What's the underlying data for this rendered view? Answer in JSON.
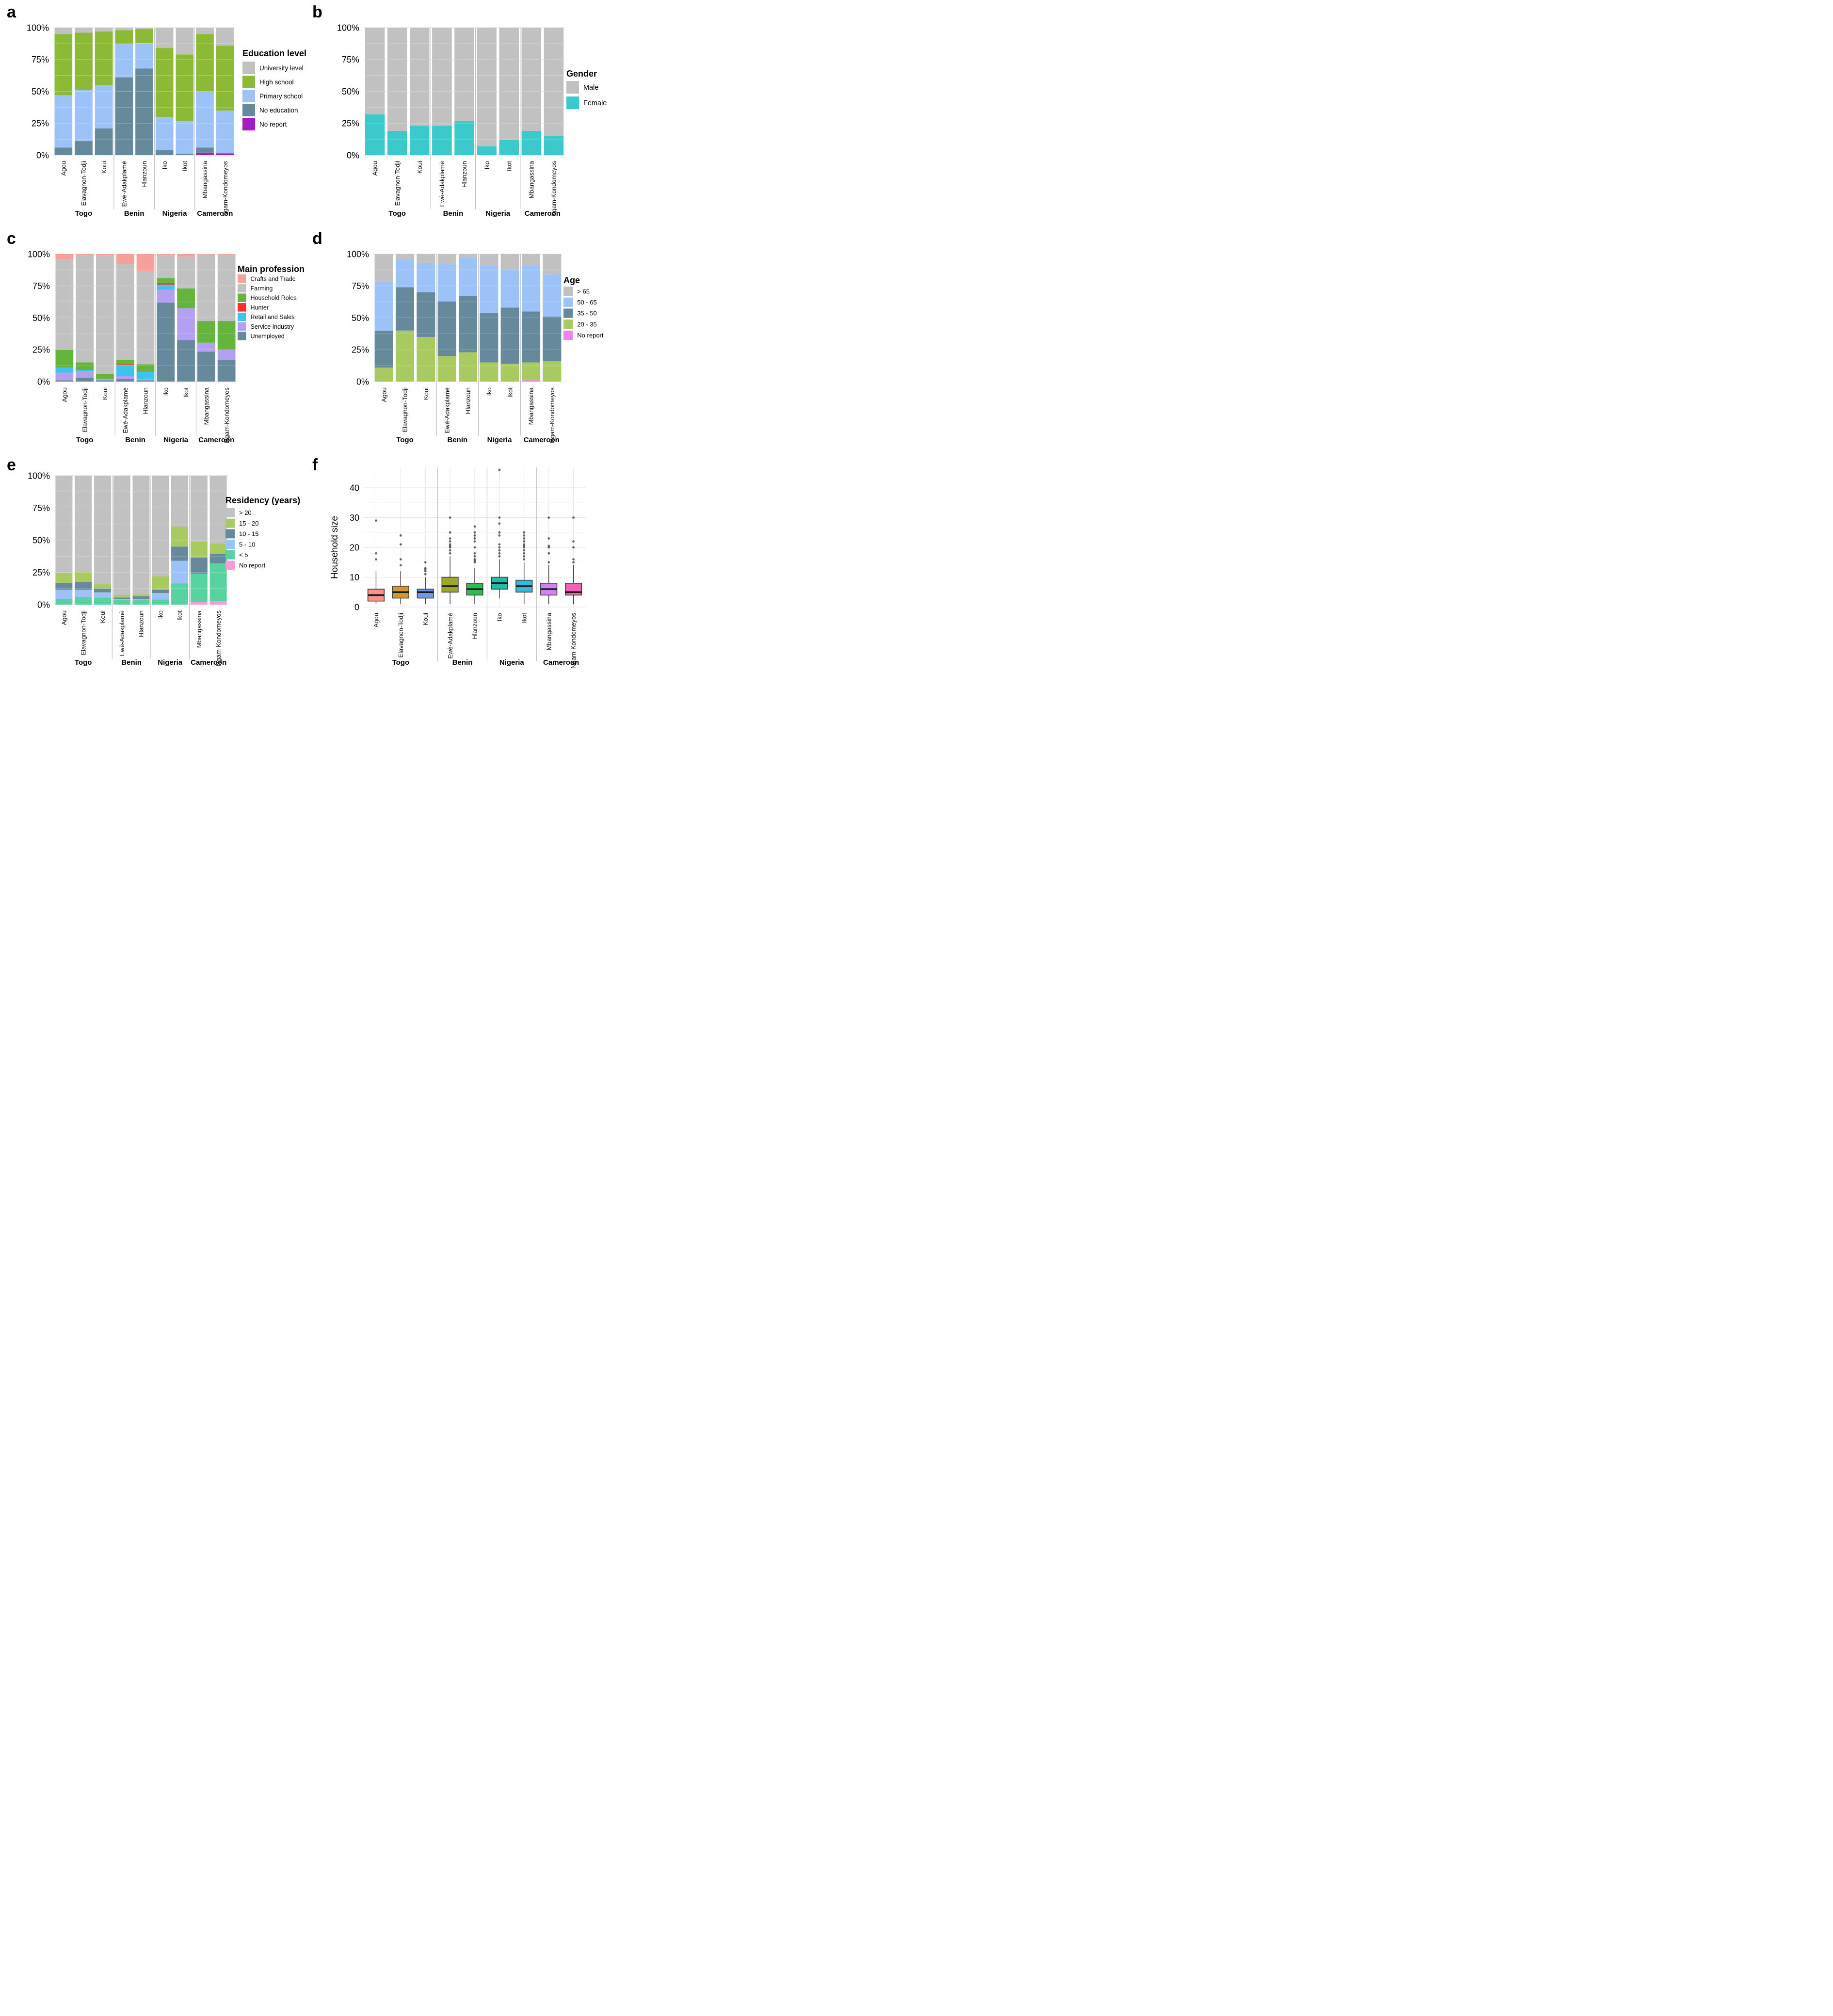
{
  "villages": [
    {
      "name": "Agou",
      "country": "Togo"
    },
    {
      "name": "Elavagnon-Todji",
      "country": "Togo"
    },
    {
      "name": "Koui",
      "country": "Togo"
    },
    {
      "name": "Ewè-Adakplamè",
      "country": "Benin"
    },
    {
      "name": "Hlanzoun",
      "country": "Benin"
    },
    {
      "name": "Iko",
      "country": "Nigeria"
    },
    {
      "name": "Ikot",
      "country": "Nigeria"
    },
    {
      "name": "Mbangassina",
      "country": "Cameroon"
    },
    {
      "name": "Ngam-Kondomeyos",
      "country": "Cameroon"
    }
  ],
  "countries": [
    {
      "name": "Togo",
      "count": 3
    },
    {
      "name": "Benin",
      "count": 2
    },
    {
      "name": "Nigeria",
      "count": 2
    },
    {
      "name": "Cameroon",
      "count": 2
    }
  ],
  "percent_ticks": [
    {
      "value": 100,
      "label": "100%"
    },
    {
      "value": 75,
      "label": "75%"
    },
    {
      "value": 50,
      "label": "50%"
    },
    {
      "value": 25,
      "label": "25%"
    },
    {
      "value": 0,
      "label": "0%"
    }
  ],
  "chart_data": [
    {
      "panel": "a",
      "type": "bar",
      "stacked": true,
      "units": "percent",
      "legend_title": "Education level",
      "categories": [
        "Agou",
        "Elavagnon-Todji",
        "Koui",
        "Ewè-Adakplamè",
        "Hlanzoun",
        "Iko",
        "Ikot",
        "Mbangassina",
        "Ngam-Kondomeyos"
      ],
      "series": [
        {
          "name": "University level",
          "color": "#C1C1C1",
          "values": [
            5,
            4,
            3,
            2,
            1,
            16,
            21,
            5,
            14
          ]
        },
        {
          "name": "High school",
          "color": "#8CBA37",
          "values": [
            48,
            45,
            42,
            11,
            11,
            54,
            52,
            45,
            51
          ]
        },
        {
          "name": "Primary school",
          "color": "#9DC2F8",
          "values": [
            41,
            40,
            34,
            26,
            20,
            26,
            26,
            44,
            33
          ]
        },
        {
          "name": "No education",
          "color": "#67899C",
          "values": [
            6,
            11,
            21,
            61,
            68,
            4,
            1,
            4,
            1
          ]
        },
        {
          "name": "No report",
          "color": "#A41CC6",
          "values": [
            0,
            0,
            0,
            0,
            0,
            0,
            0,
            2,
            1
          ]
        }
      ]
    },
    {
      "panel": "b",
      "type": "bar",
      "stacked": true,
      "units": "percent",
      "legend_title": "Gender",
      "categories": [
        "Agou",
        "Elavagnon-Todji",
        "Koui",
        "Ewè-Adakplamè",
        "Hlanzoun",
        "Iko",
        "Ikot",
        "Mbangassina",
        "Ngam-Kondomeyos"
      ],
      "series": [
        {
          "name": "Male",
          "color": "#C1C1C1",
          "values": [
            68,
            81,
            77,
            77,
            73,
            93,
            88,
            81,
            85
          ]
        },
        {
          "name": "Female",
          "color": "#3BC9CC",
          "values": [
            32,
            19,
            23,
            23,
            27,
            7,
            12,
            19,
            15
          ]
        }
      ]
    },
    {
      "panel": "c",
      "type": "bar",
      "stacked": true,
      "units": "percent",
      "legend_title": "Main profession",
      "categories": [
        "Agou",
        "Elavagnon-Todji",
        "Koui",
        "Ewè-Adakplamè",
        "Hlanzoun",
        "Iko",
        "Ikot",
        "Mbangassina",
        "Ngam-Kondomeyos"
      ],
      "series": [
        {
          "name": "Crafts and Trade",
          "color": "#F4A19B",
          "values": [
            4,
            1,
            1,
            8,
            13.5,
            1,
            2,
            0.5,
            0.5
          ]
        },
        {
          "name": "Farming",
          "color": "#C1C1C1",
          "values": [
            71,
            84,
            93,
            75,
            73,
            18,
            25,
            52,
            52
          ]
        },
        {
          "name": "Household Roles",
          "color": "#65B43C",
          "values": [
            14,
            6,
            4,
            3.5,
            5,
            4,
            15.5,
            17,
            22.5
          ]
        },
        {
          "name": "Hunter",
          "color": "#FB2E34",
          "values": [
            0,
            0,
            0,
            0.5,
            0.5,
            1,
            0,
            0,
            0
          ]
        },
        {
          "name": "Retail and Sales",
          "color": "#3DC4EC",
          "values": [
            4,
            1,
            0,
            8.5,
            6,
            4,
            0,
            0,
            0
          ]
        },
        {
          "name": "Service Industry",
          "color": "#B4A0F2",
          "values": [
            6,
            5,
            1,
            2.5,
            1,
            10,
            25,
            7,
            8
          ]
        },
        {
          "name": "Unemployed",
          "color": "#67899C",
          "values": [
            1,
            3,
            1,
            2,
            1,
            62,
            32.5,
            23.5,
            17
          ]
        }
      ]
    },
    {
      "panel": "d",
      "type": "bar",
      "stacked": true,
      "units": "percent",
      "legend_title": "Age",
      "categories": [
        "Agou",
        "Elavagnon-Todji",
        "Koui",
        "Ewè-Adakplamè",
        "Hlanzoun",
        "Iko",
        "Ikot",
        "Mbangassina",
        "Ngam-Kondomeyos"
      ],
      "series": [
        {
          "name": "> 65",
          "color": "#C1C1C1",
          "values": [
            22,
            4,
            7,
            8,
            3,
            9,
            12,
            9,
            16
          ]
        },
        {
          "name": "50 - 65",
          "color": "#9DC2F8",
          "values": [
            38,
            22,
            23,
            29,
            30,
            37,
            30,
            36,
            33
          ]
        },
        {
          "name": "35 - 50",
          "color": "#67899C",
          "values": [
            29,
            34,
            35,
            43,
            44,
            39,
            44,
            40,
            35
          ]
        },
        {
          "name": "20 - 35",
          "color": "#A9C961",
          "values": [
            11,
            40,
            35,
            20,
            23,
            15,
            14,
            14,
            16
          ]
        },
        {
          "name": "No report",
          "color": "#EE82EE",
          "values": [
            0,
            0,
            0,
            0,
            0,
            0,
            0,
            1,
            0
          ]
        }
      ]
    },
    {
      "panel": "e",
      "type": "bar",
      "stacked": true,
      "units": "percent",
      "legend_title": "Residency (years)",
      "categories": [
        "Agou",
        "Elavagnon-Todji",
        "Koui",
        "Ewè-Adakplamè",
        "Hlanzoun",
        "Iko",
        "Ikot",
        "Mbangassina",
        "Ngam-Kondomeyos"
      ],
      "series": [
        {
          "name": "> 20",
          "color": "#C1C1C1",
          "values": [
            75.5,
            74.5,
            84,
            92.5,
            92,
            78,
            39.5,
            51.5,
            52.5
          ]
        },
        {
          "name": "15 - 20",
          "color": "#A9C961",
          "values": [
            7.5,
            8,
            3.5,
            2,
            1.5,
            10.5,
            15.5,
            12,
            8
          ]
        },
        {
          "name": "10 - 15",
          "color": "#67899C",
          "values": [
            5.5,
            6,
            3,
            1,
            2,
            2.5,
            11,
            12.5,
            7.5
          ]
        },
        {
          "name": "5 - 10",
          "color": "#9DC2F8",
          "values": [
            7,
            5.5,
            4,
            1,
            0.5,
            5,
            17.5,
            0,
            0
          ]
        },
        {
          "name": "< 5",
          "color": "#57D3A2",
          "values": [
            4.5,
            6,
            5.5,
            3.5,
            4,
            4,
            16.5,
            22,
            29.5
          ]
        },
        {
          "name": "No report",
          "color": "#FA9BD7",
          "values": [
            0,
            0,
            0,
            0,
            0,
            0,
            0,
            2,
            2.5
          ]
        }
      ]
    },
    {
      "panel": "f",
      "type": "box",
      "ylabel": "Household size",
      "yticks": [
        0,
        10,
        20,
        30,
        40
      ],
      "ylim": [
        0,
        47
      ],
      "boxes": [
        {
          "village": "Agou",
          "color": "#F8928A",
          "whislo": 1,
          "q1": 2,
          "med": 4,
          "q3": 6,
          "whishi": 12,
          "outliers": [
            16,
            18,
            29
          ]
        },
        {
          "village": "Elavagnon-Todji",
          "color": "#D2982B",
          "whislo": 1,
          "q1": 3,
          "med": 5,
          "q3": 7,
          "whishi": 12,
          "outliers": [
            14,
            16,
            21,
            24
          ]
        },
        {
          "village": "Koui",
          "color": "#6F97EA",
          "whislo": 1,
          "q1": 3,
          "med": 5,
          "q3": 6,
          "whishi": 10,
          "outliers": [
            11,
            12,
            12.5,
            13,
            15
          ]
        },
        {
          "village": "Ewè-Adakplamè",
          "color": "#9CA928",
          "whislo": 1,
          "q1": 5,
          "med": 7,
          "q3": 10,
          "whishi": 17,
          "outliers": [
            18,
            19,
            20,
            20.5,
            21,
            22,
            23,
            25,
            30
          ]
        },
        {
          "village": "Hlanzoun",
          "color": "#33B858",
          "whislo": 1,
          "q1": 4,
          "med": 6,
          "q3": 8,
          "whishi": 13,
          "outliers": [
            15,
            15.5,
            16,
            17,
            18,
            20,
            22,
            23,
            24,
            25,
            27
          ]
        },
        {
          "village": "Iko",
          "color": "#27BAA5",
          "whislo": 3,
          "q1": 6,
          "med": 8,
          "q3": 10,
          "whishi": 16,
          "outliers": [
            17,
            18,
            19,
            20,
            21,
            24,
            25,
            28,
            30,
            46
          ]
        },
        {
          "village": "Ikot",
          "color": "#35B8DE",
          "whislo": 1,
          "q1": 5,
          "med": 7,
          "q3": 9,
          "whishi": 15,
          "outliers": [
            16,
            17,
            18,
            19,
            20,
            20.5,
            21,
            22,
            23,
            24,
            25
          ]
        },
        {
          "village": "Mbangassina",
          "color": "#D083F2",
          "whislo": 1,
          "q1": 4,
          "med": 6,
          "q3": 8,
          "whishi": 14,
          "outliers": [
            15,
            18,
            20,
            20.5,
            23,
            30
          ]
        },
        {
          "village": "Ngam-Kondomeyos",
          "color": "#EE64B2",
          "whislo": 1,
          "q1": 4,
          "med": 5,
          "q3": 8,
          "whishi": 14,
          "outliers": [
            15,
            16,
            20,
            22,
            30
          ]
        }
      ]
    }
  ]
}
